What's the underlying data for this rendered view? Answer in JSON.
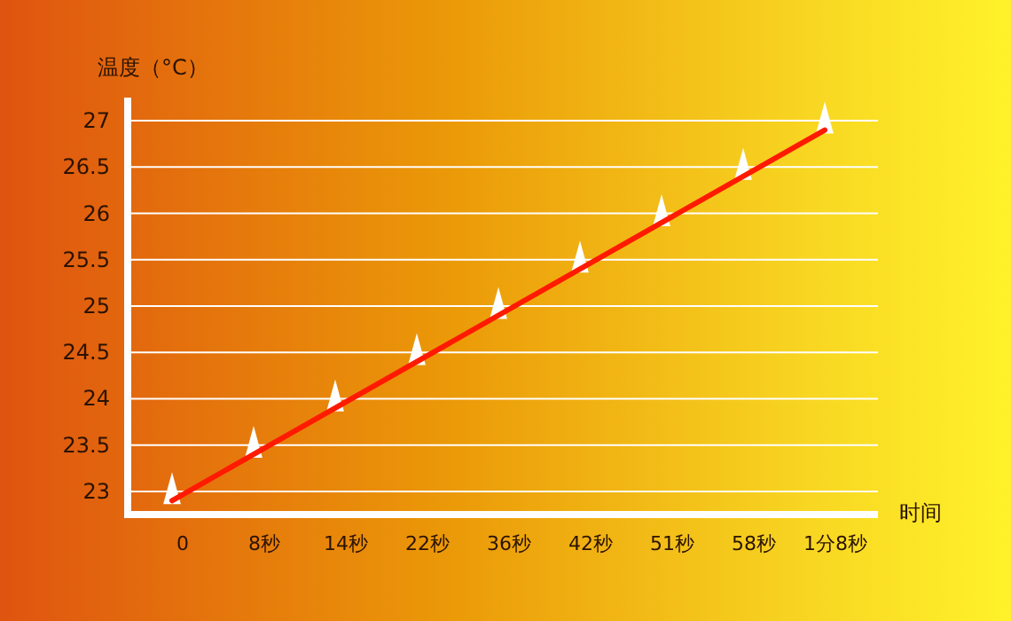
{
  "chart_data": {
    "type": "scatter",
    "xlabel": "时间",
    "ylabel": "温度（°C）",
    "categories": [
      "0",
      "8秒",
      "14秒",
      "22秒",
      "36秒",
      "42秒",
      "51秒",
      "58秒",
      "1分8秒"
    ],
    "series": [
      {
        "color": "#ffffff",
        "marker": "triangle",
        "values": [
          23.0,
          23.5,
          24.0,
          24.5,
          25.0,
          25.5,
          26.0,
          26.5,
          27.0
        ]
      },
      {
        "type": "line",
        "color": "#ff1a00",
        "x": [
          "0",
          "1分8秒"
        ],
        "values": [
          22.9,
          26.9
        ]
      }
    ],
    "ylim": [
      22.75,
      27.25
    ],
    "yticks": [
      23,
      23.5,
      24,
      24.5,
      25,
      25.5,
      26,
      26.5,
      27
    ],
    "grid": "y"
  }
}
